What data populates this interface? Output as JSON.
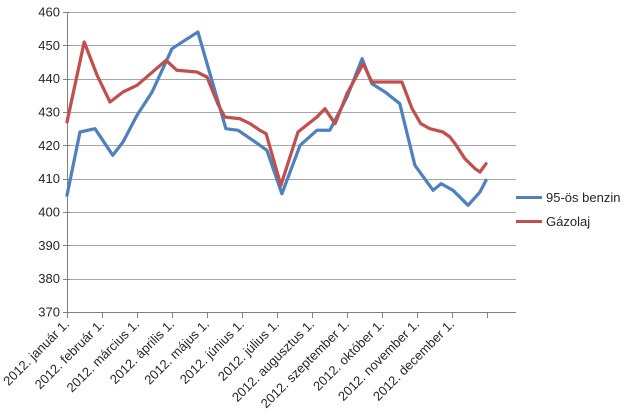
{
  "chart_data": {
    "type": "line",
    "title": "",
    "x_axis": {
      "labels": [
        "2012. január 1.",
        "2012. február 1.",
        "2012. március 1.",
        "2012. április 1.",
        "2012. május 1.",
        "2012. június 1.",
        "2012. július 1.",
        "2012. augusztus 1.",
        "2012. szeptember 1.",
        "2012. október 1.",
        "2012. november 1.",
        "2012. december 1."
      ],
      "unit": "month",
      "range_months": [
        0,
        12
      ],
      "label_rotation_deg": -45
    },
    "y_axis": {
      "min": 370,
      "max": 460,
      "step": 10,
      "tick_labels": [
        "460",
        "450",
        "440",
        "430",
        "420",
        "410",
        "400",
        "390",
        "380",
        "370"
      ]
    },
    "grid": true,
    "gridline_color": "#A6A6A6",
    "axis_color": "#808080",
    "legend_position": "right",
    "series": [
      {
        "name": "95-ös benzin",
        "color": "#4F81BD",
        "x": [
          0,
          0.37,
          0.8,
          1.31,
          1.6,
          2,
          2.43,
          3,
          3.37,
          3.74,
          4.54,
          4.89,
          5.31,
          5.71,
          6.14,
          6.66,
          7.14,
          7.51,
          8,
          8.43,
          8.71,
          9.09,
          9.51,
          9.94,
          10.46,
          10.69,
          11.03,
          11.46,
          11.8,
          11.97
        ],
        "values": [
          405,
          424,
          425,
          417,
          421,
          429,
          436,
          449,
          451.5,
          454,
          425,
          424.5,
          421.5,
          418.5,
          405.5,
          420,
          424.5,
          424.5,
          434.5,
          446,
          438.5,
          436,
          432.5,
          414,
          406.5,
          408.5,
          406.5,
          402,
          406,
          409.5
        ]
      },
      {
        "name": "Gázolaj",
        "color": "#C0504D",
        "x": [
          0,
          0.49,
          0.86,
          1.23,
          1.6,
          2,
          2.83,
          3.14,
          3.71,
          4,
          4.31,
          4.51,
          4.94,
          5.23,
          5.51,
          5.69,
          6.11,
          6.6,
          7.14,
          7.37,
          7.66,
          8,
          8.46,
          8.71,
          9.57,
          9.86,
          10.11,
          10.37,
          10.74,
          10.94,
          11.09,
          11.37,
          11.66,
          11.8,
          11.97
        ],
        "values": [
          427,
          451,
          441,
          433,
          436,
          438,
          445.5,
          442.5,
          442,
          440.5,
          432.5,
          428.5,
          428,
          426.5,
          424.5,
          423.5,
          408,
          424,
          428.5,
          431,
          426.5,
          435.5,
          444.5,
          439,
          439,
          431,
          426.5,
          425,
          424,
          422.5,
          420.5,
          416,
          413,
          412,
          414.5
        ]
      }
    ]
  }
}
